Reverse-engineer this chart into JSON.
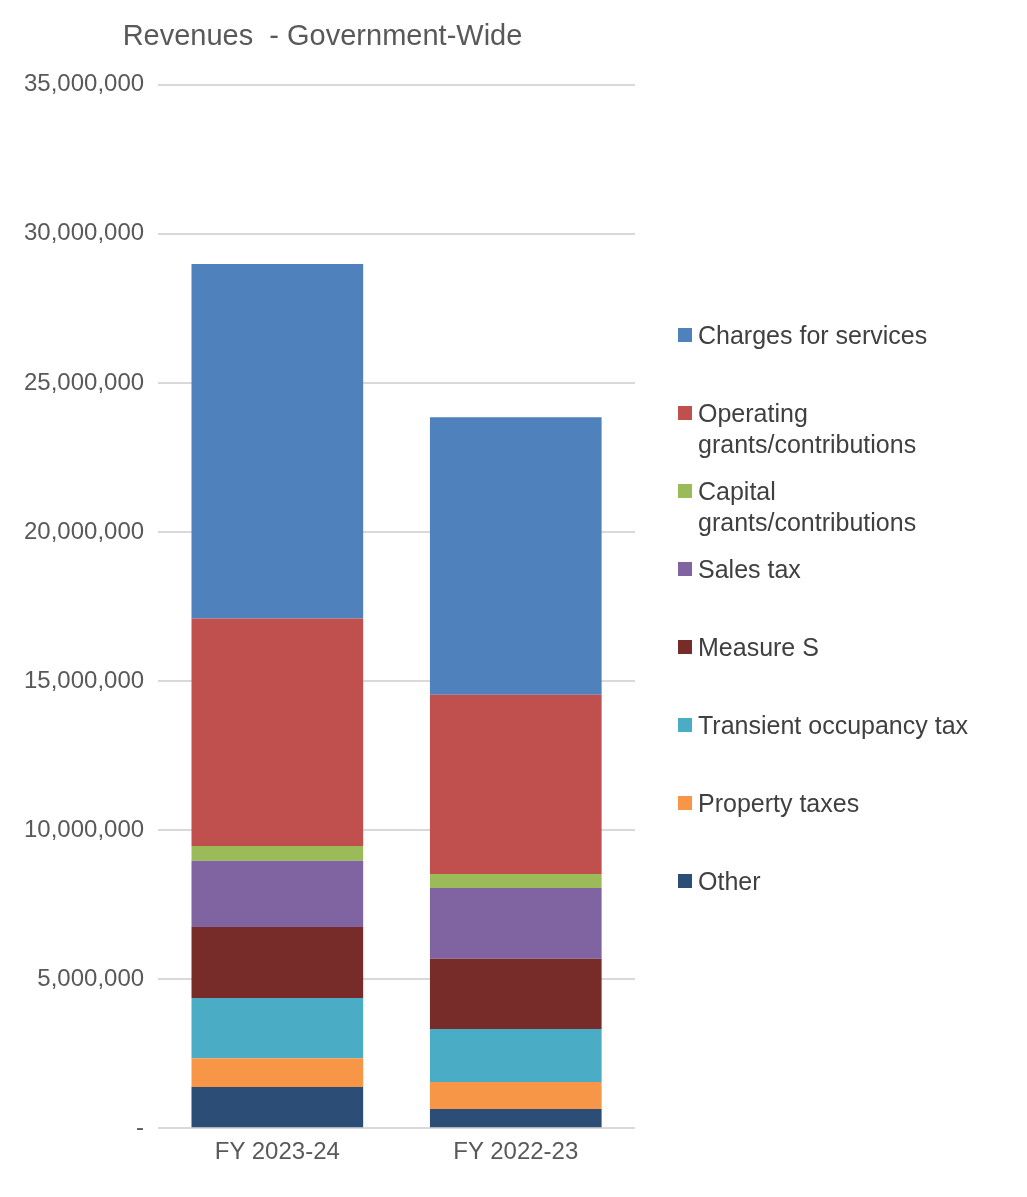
{
  "chart_data": {
    "type": "bar",
    "title": "Revenues  - Government-Wide",
    "stacked": true,
    "categories": [
      "FY 2023-24",
      "FY 2022-23"
    ],
    "series": [
      {
        "name": "Other",
        "color": "#2c4d75",
        "values": [
          1380000,
          640000
        ]
      },
      {
        "name": "Property taxes",
        "color": "#f79646",
        "values": [
          970000,
          910000
        ]
      },
      {
        "name": "Transient occupancy tax",
        "color": "#4bacc6",
        "values": [
          2020000,
          1780000
        ]
      },
      {
        "name": "Measure S",
        "color": "#772c2a",
        "values": [
          2380000,
          2350000
        ]
      },
      {
        "name": "Sales tax",
        "color": "#8064a2",
        "values": [
          2220000,
          2380000
        ]
      },
      {
        "name": "Capital grants/contributions",
        "color": "#9bbb59",
        "values": [
          500000,
          470000
        ]
      },
      {
        "name": "Operating grants/contributions",
        "color": "#c0504d",
        "values": [
          7630000,
          6010000
        ]
      },
      {
        "name": "Charges for services",
        "color": "#4f81bd",
        "values": [
          11890000,
          9310000
        ]
      }
    ],
    "ylim": [
      0,
      35000000
    ],
    "yticks": [
      {
        "value": 0,
        "label": "-"
      },
      {
        "value": 5000000,
        "label": "5,000,000"
      },
      {
        "value": 10000000,
        "label": "10,000,000"
      },
      {
        "value": 15000000,
        "label": "15,000,000"
      },
      {
        "value": 20000000,
        "label": "20,000,000"
      },
      {
        "value": 25000000,
        "label": "25,000,000"
      },
      {
        "value": 30000000,
        "label": "30,000,000"
      },
      {
        "value": 35000000,
        "label": "35,000,000"
      }
    ],
    "grid": "y",
    "legend": "right"
  }
}
